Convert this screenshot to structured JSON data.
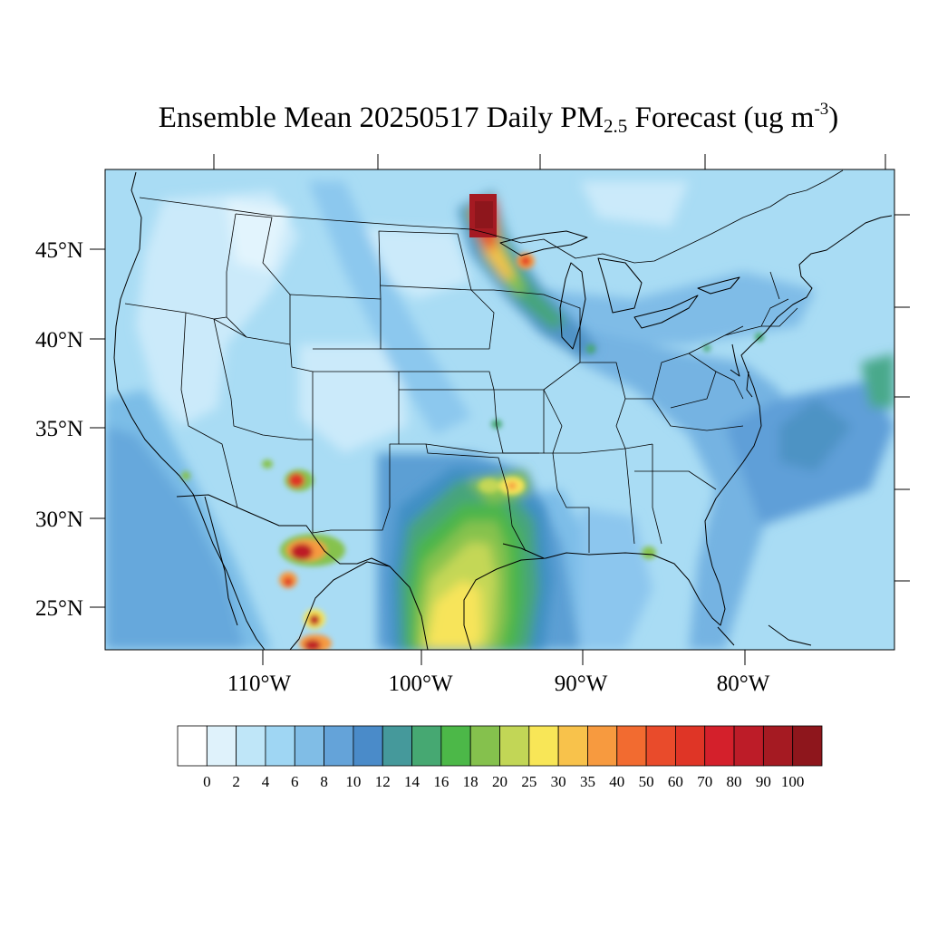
{
  "title": {
    "prefix": "Ensemble Mean 20250517 Daily PM",
    "subscript": "2.5",
    "middle": " Forecast (ug m",
    "superscript": "-3",
    "suffix": ")"
  },
  "lat_labels": [
    "45°N",
    "40°N",
    "35°N",
    "30°N",
    "25°N"
  ],
  "lon_labels": [
    "110°W",
    "100°W",
    "90°W",
    "80°W"
  ],
  "colorbar": {
    "labels": [
      "0",
      "2",
      "4",
      "6",
      "8",
      "10",
      "12",
      "14",
      "16",
      "18",
      "20",
      "25",
      "30",
      "35",
      "40",
      "50",
      "60",
      "70",
      "80",
      "90",
      "100"
    ],
    "colors": [
      "#ffffff",
      "#dff2fb",
      "#bfe6f8",
      "#9fd6f3",
      "#80bde6",
      "#64a3d9",
      "#4a8bc9",
      "#45999b",
      "#46a872",
      "#4cb848",
      "#85c14d",
      "#c2d656",
      "#f8e657",
      "#f8c24b",
      "#f79a3f",
      "#f26b30",
      "#e94b2b",
      "#df3526",
      "#d4202b",
      "#bd1c28",
      "#a51a22",
      "#8e161c"
    ]
  }
}
